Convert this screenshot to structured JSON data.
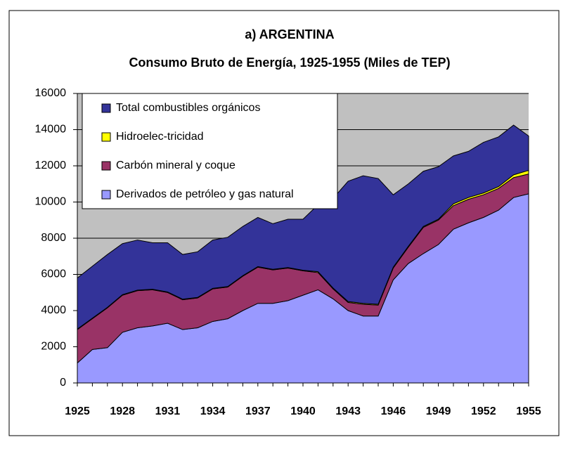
{
  "chart_data": {
    "type": "stacked_area",
    "title": "a) ARGENTINA",
    "subtitle": "Consumo Bruto de Energía, 1925-1955 (Miles de TEP)",
    "categories": [
      "1925",
      null,
      null,
      "1928",
      null,
      null,
      "1931",
      null,
      null,
      "1934",
      null,
      null,
      "1937",
      null,
      null,
      "1940",
      null,
      null,
      "1943",
      null,
      null,
      "1946",
      null,
      null,
      "1949",
      null,
      null,
      "1952",
      null,
      null,
      "1955"
    ],
    "series": [
      {
        "name": "Derivados de petróleo y gas natural",
        "color": "#9999ff",
        "values": [
          1100,
          1850,
          1950,
          2800,
          3050,
          3150,
          3300,
          2950,
          3050,
          3400,
          3550,
          4000,
          4400,
          4400,
          4550,
          4850,
          5150,
          4650,
          4000,
          3700,
          3700,
          5700,
          6600,
          7150,
          7650,
          8500,
          8850,
          9150,
          9550,
          10250,
          10450
        ]
      },
      {
        "name": "Carbón mineral y coque",
        "color": "#993366",
        "values": [
          1850,
          1700,
          2200,
          2050,
          2050,
          2000,
          1700,
          1650,
          1650,
          1800,
          1750,
          1900,
          2000,
          1850,
          1800,
          1350,
          950,
          550,
          450,
          650,
          600,
          650,
          900,
          1450,
          1350,
          1300,
          1300,
          1250,
          1200,
          1100,
          1100
        ]
      },
      {
        "name": "Hidroelec-tricidad",
        "color": "#ffff00",
        "values": [
          30,
          30,
          30,
          30,
          30,
          30,
          30,
          30,
          30,
          30,
          30,
          30,
          30,
          30,
          30,
          30,
          50,
          50,
          50,
          50,
          50,
          50,
          50,
          50,
          50,
          100,
          100,
          100,
          100,
          150,
          200
        ]
      },
      {
        "name": "Total combustibles orgánicos",
        "color": "#333399",
        "values": [
          2820,
          2870,
          2920,
          2820,
          2770,
          2570,
          2720,
          2470,
          2520,
          2670,
          2720,
          2720,
          2720,
          2520,
          2670,
          2820,
          3700,
          4950,
          6650,
          7050,
          6950,
          4000,
          3450,
          3050,
          2900,
          2650,
          2550,
          2800,
          2750,
          2750,
          1900
        ]
      }
    ],
    "ylim": [
      0,
      16000
    ],
    "yticks": [
      0,
      2000,
      4000,
      6000,
      8000,
      10000,
      12000,
      14000,
      16000
    ],
    "grid": true,
    "legend": "top-left",
    "background": "#c0c0c0"
  }
}
